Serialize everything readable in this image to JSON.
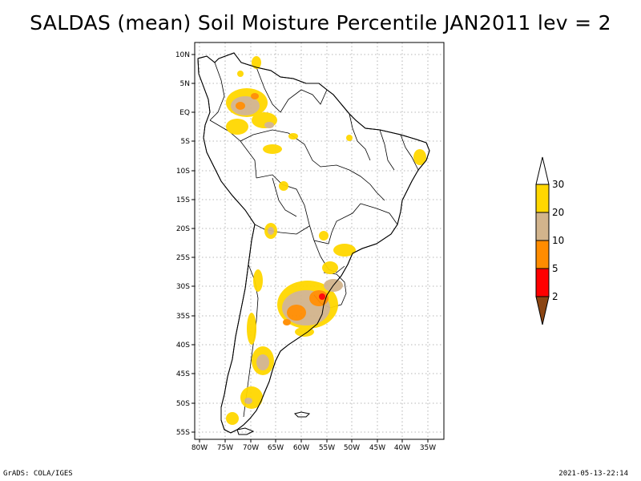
{
  "title": "SALDAS (mean) Soil Moisture Percentile JAN2011 lev = 2",
  "footer": {
    "left": "GrADS: COLA/IGES",
    "right": "2021-05-13-22:14"
  },
  "map": {
    "lat_labels": [
      "10N",
      "5N",
      "EQ",
      "5S",
      "10S",
      "15S",
      "20S",
      "25S",
      "30S",
      "35S",
      "40S",
      "45S",
      "50S",
      "55S"
    ],
    "lon_labels": [
      "80W",
      "75W",
      "70W",
      "65W",
      "60W",
      "55W",
      "50W",
      "45W",
      "40W",
      "35W"
    ]
  },
  "legend": {
    "labels": [
      "30",
      "20",
      "10",
      "5",
      "2"
    ],
    "colors": {
      "above30": "#ffffff",
      "c20_30": "#ffd700",
      "c10_20": "#d2b48c",
      "c5_10": "#ff8c00",
      "c2_5": "#ff0000",
      "below2": "#8b4513"
    }
  }
}
